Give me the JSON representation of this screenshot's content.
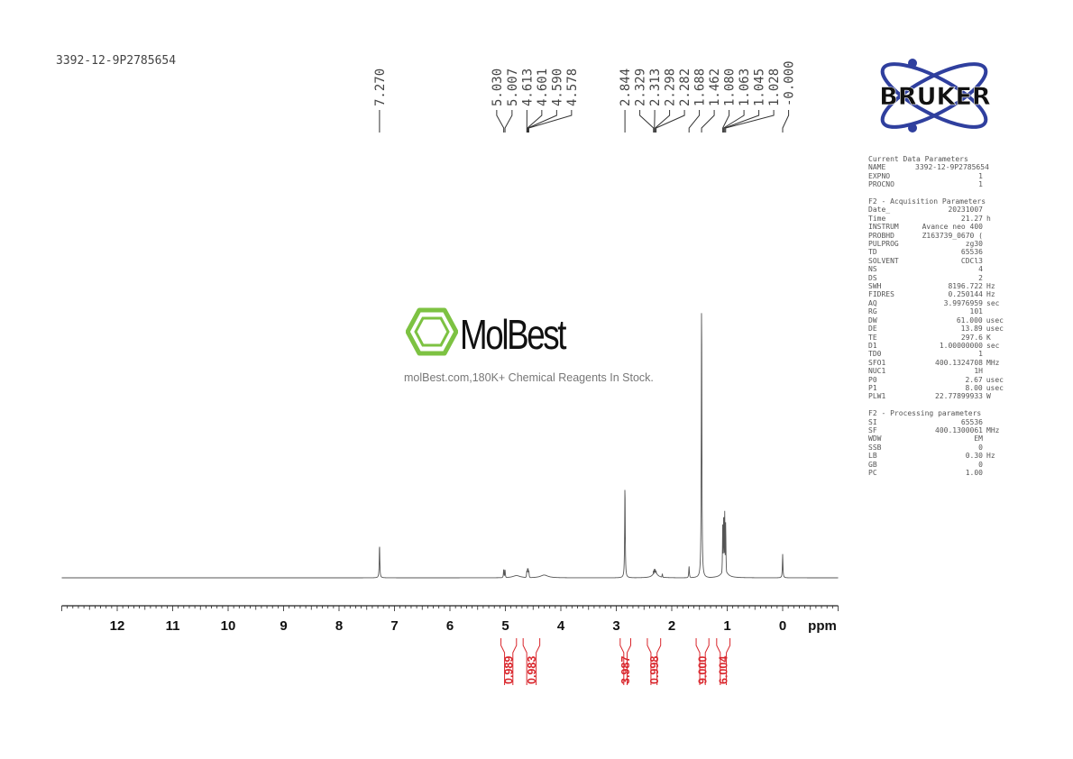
{
  "sample_name": "3392-12-9P2785654",
  "watermark": {
    "brand": "MolBest",
    "tagline": "molBest.com,180K+ Chemical Reagents In Stock.",
    "color": "#7dc242"
  },
  "logo": {
    "text": "BRUKER",
    "orbit_color": "#2f3f9e"
  },
  "parameters": [
    {
      "title": "Current Data Parameters",
      "rows": [
        [
          "NAME",
          "3392-12-9P2785654",
          ""
        ],
        [
          "EXPNO",
          "1",
          ""
        ],
        [
          "PROCNO",
          "1",
          ""
        ]
      ]
    },
    {
      "title": "F2 - Acquisition Parameters",
      "rows": [
        [
          "Date_",
          "20231007",
          ""
        ],
        [
          "Time",
          "21.27",
          "h"
        ],
        [
          "INSTRUM",
          "Avance neo 400",
          ""
        ],
        [
          "PROBHD",
          "Z163739_0670 (",
          ""
        ],
        [
          "PULPROG",
          "zg30",
          ""
        ],
        [
          "TD",
          "65536",
          ""
        ],
        [
          "SOLVENT",
          "CDCl3",
          ""
        ],
        [
          "NS",
          "4",
          ""
        ],
        [
          "DS",
          "2",
          ""
        ],
        [
          "SWH",
          "8196.722",
          "Hz"
        ],
        [
          "FIDRES",
          "0.250144",
          "Hz"
        ],
        [
          "AQ",
          "3.9976959",
          "sec"
        ],
        [
          "RG",
          "101",
          ""
        ],
        [
          "DW",
          "61.000",
          "usec"
        ],
        [
          "DE",
          "13.89",
          "usec"
        ],
        [
          "TE",
          "297.6",
          "K"
        ],
        [
          "D1",
          "1.00000000",
          "sec"
        ],
        [
          "TD0",
          "1",
          ""
        ],
        [
          "SFO1",
          "400.1324708",
          "MHz"
        ],
        [
          "NUC1",
          "1H",
          ""
        ],
        [
          "P0",
          "2.67",
          "usec"
        ],
        [
          "P1",
          "8.00",
          "usec"
        ],
        [
          "PLW1",
          "22.77899933",
          "W"
        ]
      ]
    },
    {
      "title": "F2 - Processing parameters",
      "rows": [
        [
          "SI",
          "65536",
          ""
        ],
        [
          "SF",
          "400.1300061",
          "MHz"
        ],
        [
          "WDW",
          "EM",
          ""
        ],
        [
          "SSB",
          "0",
          ""
        ],
        [
          "LB",
          "0.30",
          "Hz"
        ],
        [
          "GB",
          "0",
          ""
        ],
        [
          "PC",
          "1.00",
          ""
        ]
      ]
    }
  ],
  "chart_data": {
    "type": "line",
    "xlabel": "ppm",
    "xlim": [
      13,
      -1
    ],
    "x_reversed": true,
    "xticks": [
      12,
      11,
      10,
      9,
      8,
      7,
      6,
      5,
      4,
      3,
      2,
      1,
      0
    ],
    "xtick_labels": [
      "12",
      "11",
      "10",
      "9",
      "8",
      "7",
      "6",
      "5",
      "4",
      "3",
      "2",
      "1",
      "0"
    ],
    "line_color": "#555555",
    "peaks": [
      {
        "ppm": 7.27,
        "intensity": 12
      },
      {
        "ppm": 5.03,
        "intensity": 3.2
      },
      {
        "ppm": 5.007,
        "intensity": 3.0
      },
      {
        "ppm": 4.8,
        "intensity": 0.8,
        "width_ppm": 0.08
      },
      {
        "ppm": 4.613,
        "intensity": 2.6
      },
      {
        "ppm": 4.601,
        "intensity": 3.4
      },
      {
        "ppm": 4.59,
        "intensity": 3.4
      },
      {
        "ppm": 4.578,
        "intensity": 2.6
      },
      {
        "ppm": 4.3,
        "intensity": 1.0,
        "width_ppm": 0.08
      },
      {
        "ppm": 2.844,
        "intensity": 33.5
      },
      {
        "ppm": 2.329,
        "intensity": 2.6
      },
      {
        "ppm": 2.313,
        "intensity": 3.2
      },
      {
        "ppm": 2.298,
        "intensity": 3.2
      },
      {
        "ppm": 2.282,
        "intensity": 2.6
      },
      {
        "ppm": 2.3,
        "intensity": 2.0,
        "width_ppm": 0.05
      },
      {
        "ppm": 2.17,
        "intensity": 1.5
      },
      {
        "ppm": 1.688,
        "intensity": 4.2
      },
      {
        "ppm": 1.462,
        "intensity": 100
      },
      {
        "ppm": 1.08,
        "intensity": 20
      },
      {
        "ppm": 1.063,
        "intensity": 24
      },
      {
        "ppm": 1.045,
        "intensity": 24
      },
      {
        "ppm": 1.028,
        "intensity": 20
      },
      {
        "ppm": 1.05,
        "intensity": 3,
        "width_ppm": 0.06
      },
      {
        "ppm": 0.0,
        "intensity": 8.5
      }
    ],
    "peak_labels": [
      {
        "group": [
          7.27
        ],
        "labels": [
          "7.270"
        ]
      },
      {
        "group": [
          5.03,
          5.007
        ],
        "labels": [
          "5.030",
          "5.007"
        ]
      },
      {
        "group": [
          4.613,
          4.601,
          4.59,
          4.578
        ],
        "labels": [
          "4.613",
          "4.601",
          "4.590",
          "4.578"
        ]
      },
      {
        "group": [
          2.844
        ],
        "labels": [
          "2.844"
        ]
      },
      {
        "group": [
          2.329,
          2.313,
          2.298,
          2.282
        ],
        "labels": [
          "2.329",
          "2.313",
          "2.298",
          "2.282"
        ]
      },
      {
        "group": [
          1.688
        ],
        "labels": [
          "1.688"
        ]
      },
      {
        "group": [
          1.462
        ],
        "labels": [
          "1.462"
        ]
      },
      {
        "group": [
          1.08,
          1.063,
          1.045,
          1.028
        ],
        "labels": [
          "1.080",
          "1.063",
          "1.045",
          "1.028"
        ]
      },
      {
        "group": [
          0.0
        ],
        "labels": [
          "-0.000"
        ]
      }
    ],
    "integrals": [
      {
        "from": 5.08,
        "to": 4.8,
        "value": "0.989"
      },
      {
        "from": 4.68,
        "to": 4.38,
        "value": "0.983"
      },
      {
        "from": 2.93,
        "to": 2.74,
        "value": "3.987"
      },
      {
        "from": 2.44,
        "to": 2.2,
        "value": "0.998"
      },
      {
        "from": 1.56,
        "to": 1.33,
        "value": "9.000"
      },
      {
        "from": 1.19,
        "to": 0.95,
        "value": "6.004"
      }
    ],
    "integral_color": "#d9262c"
  }
}
